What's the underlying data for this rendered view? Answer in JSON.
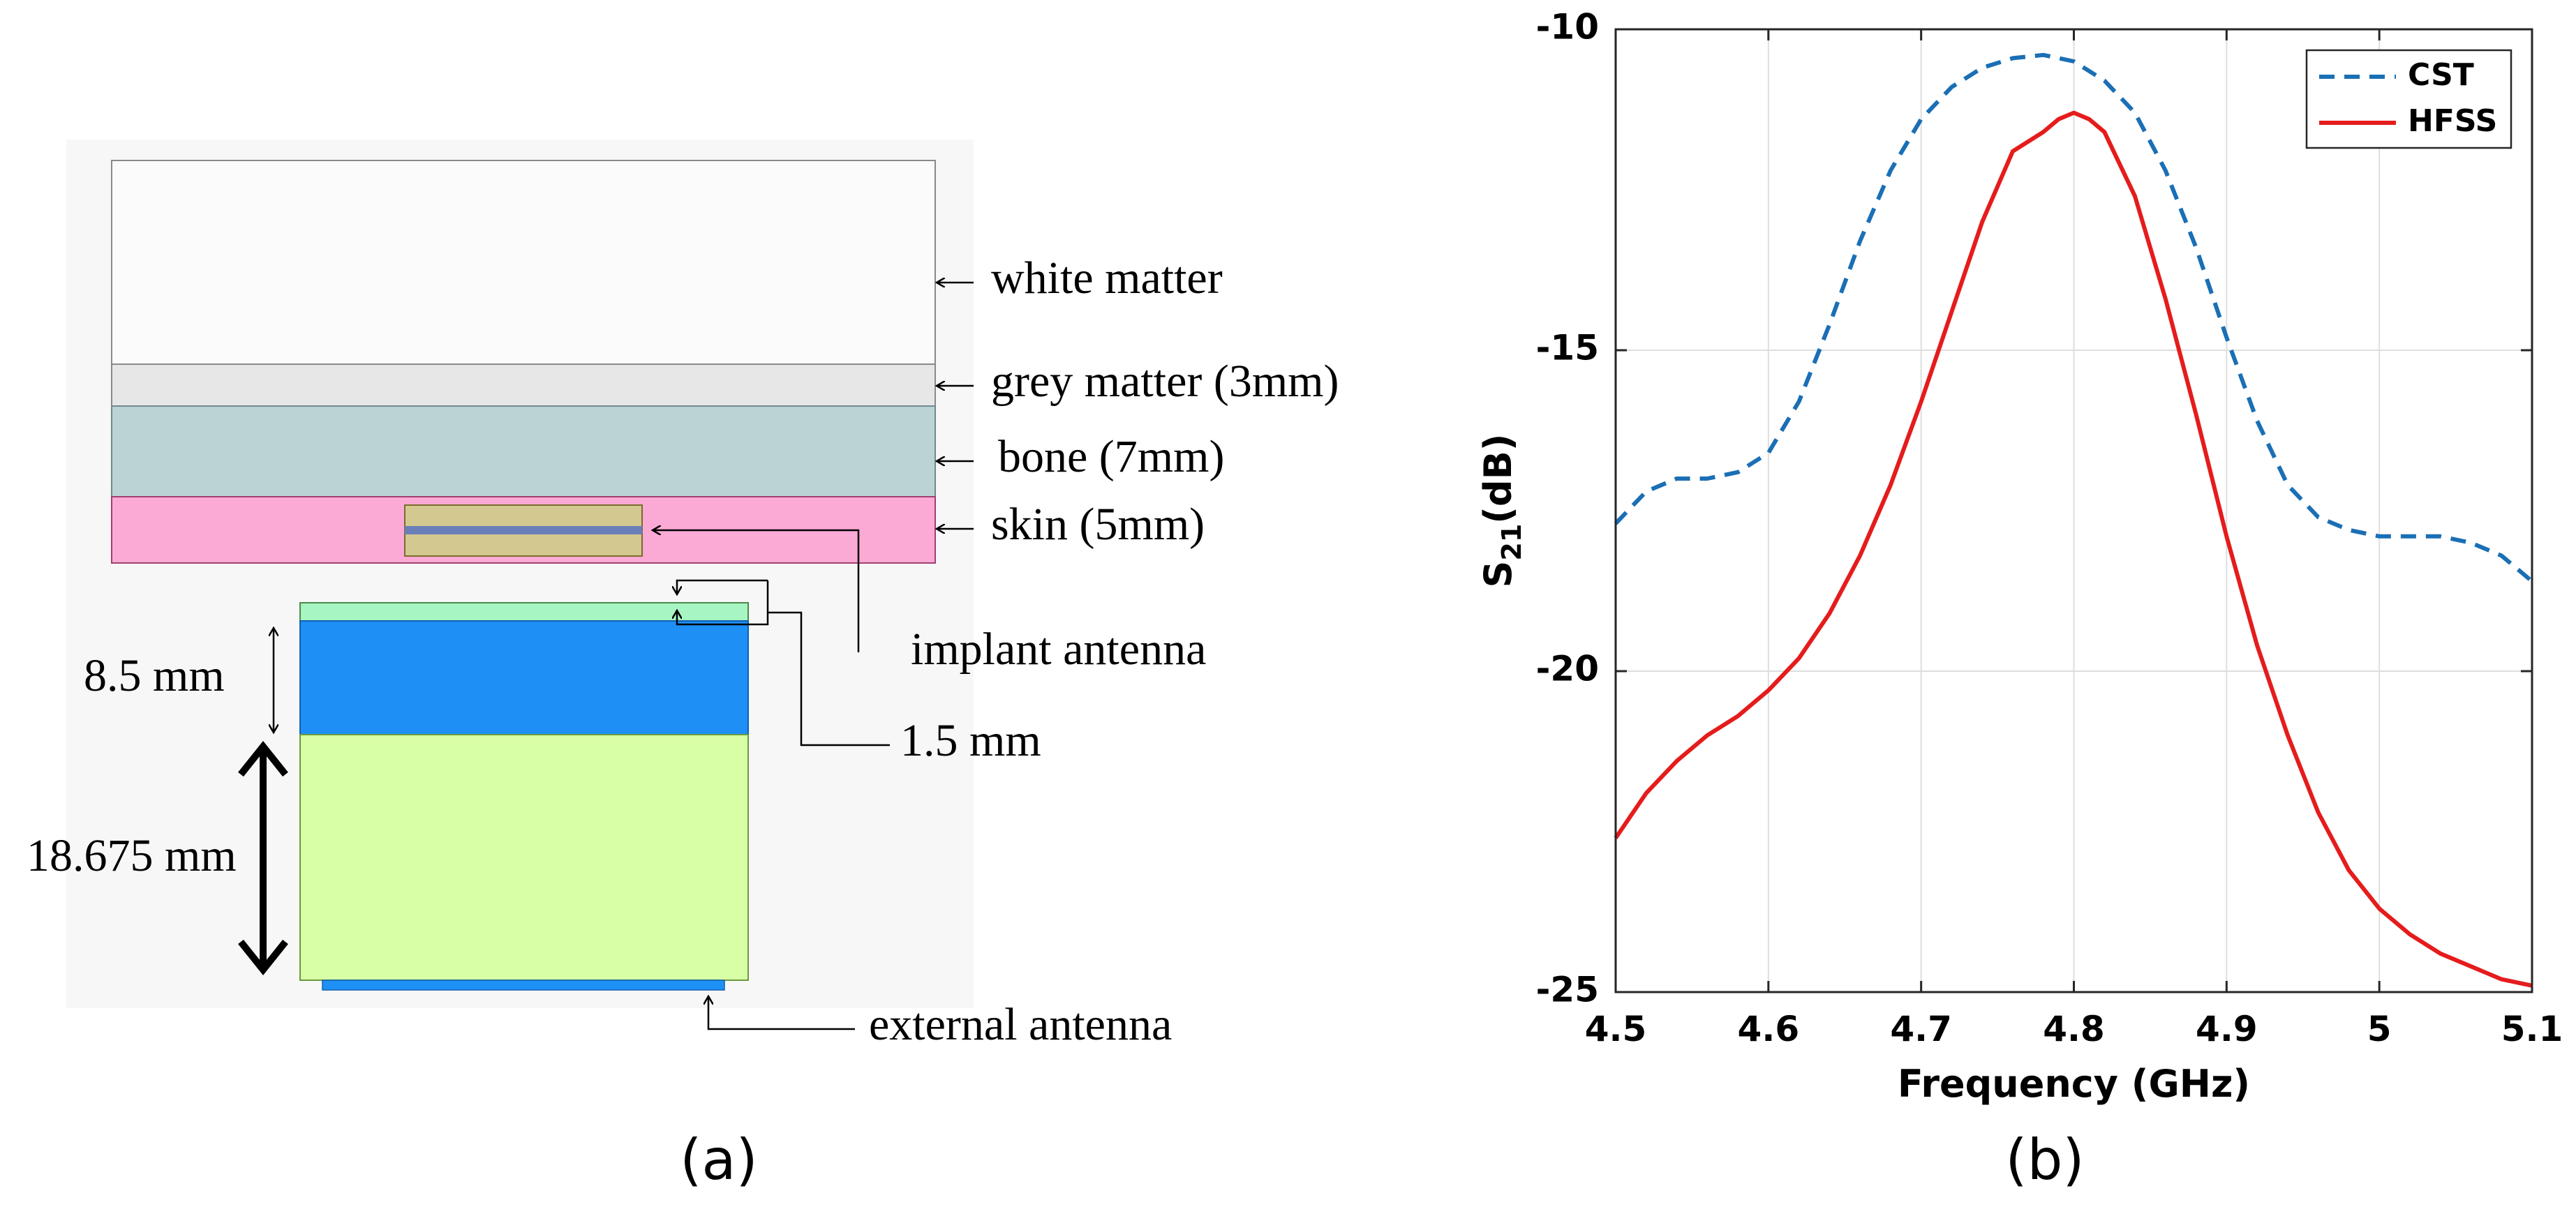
{
  "panel_a": {
    "caption": "(a)",
    "labels": {
      "white_matter": "white matter",
      "grey_matter": "grey matter (3mm)",
      "bone": "bone (7mm)",
      "skin": "skin (5mm)",
      "implant_antenna": "implant antenna",
      "gap": "1.5 mm",
      "height_8_5": "8.5 mm",
      "height_18_675": "18.675 mm",
      "external_antenna": "external antenna"
    },
    "colors": {
      "white_matter": "#fbfbfb",
      "grey_matter": "#e7e7e7",
      "bone": "#bcd3d5",
      "skin": "#fbaad6",
      "implant": "#d3c890",
      "implant_strip": "#6a7fb9",
      "top_strip": "#a7f5c2",
      "blue_block": "#1e8ff5",
      "green_block": "#d8ffa6",
      "external_antenna": "#1e8ff5",
      "background_box": "#f7f7f7"
    }
  },
  "panel_b": {
    "caption": "(b)",
    "chart_data": {
      "type": "line",
      "xlabel": "Frequency (GHz)",
      "ylabel_main": "S",
      "ylabel_sub": "21",
      "ylabel_unit": "(dB)",
      "xlim": [
        4.5,
        5.1
      ],
      "ylim": [
        -25,
        -10
      ],
      "xticks": [
        4.5,
        4.6,
        4.7,
        4.8,
        4.9,
        5,
        5.1
      ],
      "xtick_labels": [
        "4.5",
        "4.6",
        "4.7",
        "4.8",
        "4.9",
        "5",
        "5.1"
      ],
      "yticks": [
        -25,
        -20,
        -15,
        -10
      ],
      "ytick_labels": [
        "-25",
        "-20",
        "-15",
        "-10"
      ],
      "grid": true,
      "legend_position": "top-right",
      "series": [
        {
          "name": "CST",
          "color": "#1a6fb5",
          "style": "dashed",
          "x": [
            4.5,
            4.52,
            4.54,
            4.56,
            4.58,
            4.6,
            4.62,
            4.64,
            4.66,
            4.68,
            4.7,
            4.72,
            4.74,
            4.76,
            4.78,
            4.8,
            4.82,
            4.84,
            4.86,
            4.88,
            4.9,
            4.92,
            4.94,
            4.96,
            4.98,
            5.0,
            5.02,
            5.04,
            5.06,
            5.08,
            5.1
          ],
          "y": [
            -17.7,
            -17.2,
            -17.0,
            -17.0,
            -16.9,
            -16.6,
            -15.8,
            -14.6,
            -13.3,
            -12.2,
            -11.4,
            -10.9,
            -10.6,
            -10.45,
            -10.4,
            -10.5,
            -10.8,
            -11.3,
            -12.2,
            -13.4,
            -14.8,
            -16.1,
            -17.1,
            -17.6,
            -17.8,
            -17.9,
            -17.9,
            -17.9,
            -18.0,
            -18.2,
            -18.6
          ]
        },
        {
          "name": "HFSS",
          "color": "#e51c1c",
          "style": "solid",
          "x": [
            4.5,
            4.52,
            4.54,
            4.56,
            4.58,
            4.6,
            4.62,
            4.64,
            4.66,
            4.68,
            4.7,
            4.72,
            4.74,
            4.76,
            4.78,
            4.79,
            4.8,
            4.81,
            4.82,
            4.84,
            4.86,
            4.88,
            4.9,
            4.92,
            4.94,
            4.96,
            4.98,
            5.0,
            5.02,
            5.04,
            5.06,
            5.08,
            5.1
          ],
          "y": [
            -22.6,
            -21.9,
            -21.4,
            -21.0,
            -20.7,
            -20.3,
            -19.8,
            -19.1,
            -18.2,
            -17.1,
            -15.8,
            -14.4,
            -13.0,
            -11.9,
            -11.6,
            -11.4,
            -11.3,
            -11.4,
            -11.6,
            -12.6,
            -14.2,
            -16.0,
            -17.9,
            -19.6,
            -21.0,
            -22.2,
            -23.1,
            -23.7,
            -24.1,
            -24.4,
            -24.6,
            -24.8,
            -24.9
          ]
        }
      ]
    }
  }
}
